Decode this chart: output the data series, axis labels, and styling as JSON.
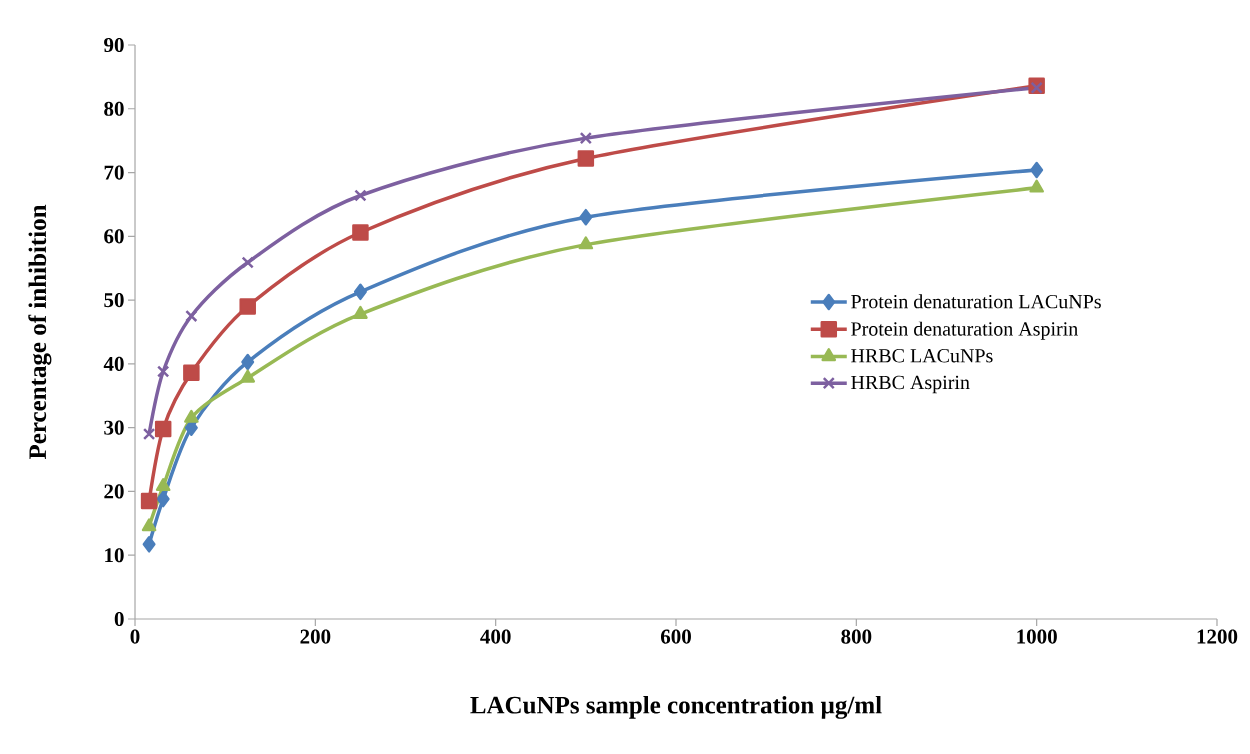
{
  "chart_data": {
    "type": "line",
    "xlabel": "LACuNPs sample concentration µg/ml",
    "ylabel": "Percentage of inhibition",
    "x": [
      15.625,
      31.25,
      62.5,
      125,
      250,
      500,
      1000
    ],
    "series": [
      {
        "name": "Protein denaturation LACuNPs",
        "color": "#4a7ebb",
        "marker": "diamond",
        "values": [
          11.7,
          18.8,
          30,
          40.3,
          51.3,
          63,
          70.4
        ]
      },
      {
        "name": "Protein denaturation Aspirin",
        "color": "#be4b48",
        "marker": "square",
        "values": [
          18.5,
          29.8,
          38.6,
          49,
          60.6,
          72.2,
          83.6
        ]
      },
      {
        "name": "HRBC LACuNPs",
        "color": "#98b954",
        "marker": "triangle",
        "values": [
          14.5,
          20.8,
          31.5,
          37.8,
          47.8,
          58.7,
          67.6
        ]
      },
      {
        "name": "HRBC Aspirin",
        "color": "#7d60a0",
        "marker": "cross",
        "values": [
          29,
          38.8,
          47.5,
          55.9,
          66.4,
          75.4,
          83.3
        ]
      }
    ],
    "xlim": [
      0,
      1200
    ],
    "xticks": [
      0,
      200,
      400,
      600,
      800,
      1000,
      1200
    ],
    "ylim": [
      0,
      90
    ],
    "yticks": [
      0,
      10,
      20,
      30,
      40,
      50,
      60,
      70,
      80,
      90
    ],
    "grid": false,
    "legend": "right",
    "line_style": "solid"
  }
}
